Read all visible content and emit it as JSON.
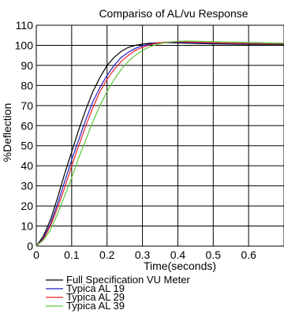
{
  "chart_data": {
    "type": "line",
    "title": "Compariso of AL/vu Response",
    "xlabel": "Time(seconds)",
    "ylabel": "%Deflection",
    "xlim": [
      0,
      0.7
    ],
    "ylim": [
      0,
      110
    ],
    "xticks": [
      "0",
      "0.1",
      "0.2",
      "0.3",
      "0.4",
      "0.5",
      "0.6"
    ],
    "yticks": [
      "0",
      "10",
      "20",
      "30",
      "40",
      "50",
      "60",
      "70",
      "80",
      "90",
      "100",
      "110"
    ],
    "grid": true,
    "legend_position": "bottom",
    "x": [
      0,
      0.02,
      0.04,
      0.06,
      0.08,
      0.1,
      0.12,
      0.14,
      0.16,
      0.18,
      0.2,
      0.22,
      0.24,
      0.26,
      0.28,
      0.3,
      0.32,
      0.34,
      0.36,
      0.38,
      0.4,
      0.42,
      0.44,
      0.46,
      0.48,
      0.5,
      0.55,
      0.6,
      0.65,
      0.7
    ],
    "series": [
      {
        "name": "Full Specification VU Meter",
        "color": "#000000",
        "values": [
          0,
          5,
          13,
          24,
          36,
          47,
          58,
          68,
          77,
          84,
          90,
          94,
          97,
          99,
          100,
          100.6,
          101,
          101.2,
          101.3,
          101.3,
          101.2,
          101.1,
          101,
          100.9,
          100.8,
          100.7,
          100.6,
          100.5,
          100.5,
          100.5
        ]
      },
      {
        "name": "Typica AL 19",
        "color": "#1f1fbf",
        "values": [
          0,
          4,
          11,
          21,
          32,
          43,
          53,
          63,
          72,
          79,
          85,
          90,
          94,
          96.5,
          98.5,
          99.8,
          100.6,
          101.1,
          101.4,
          101.5,
          101.5,
          101.4,
          101.3,
          101.2,
          101.1,
          101,
          100.9,
          100.8,
          100.8,
          100.8
        ]
      },
      {
        "name": "Typica AL 29",
        "color": "#e8202a",
        "values": [
          0,
          3.5,
          10,
          19,
          29,
          40,
          50,
          60,
          69,
          77,
          83,
          88,
          92,
          95,
          97.5,
          99,
          100.2,
          101,
          101.5,
          101.7,
          101.8,
          101.7,
          101.6,
          101.5,
          101.4,
          101.3,
          101.1,
          101,
          100.9,
          100.9
        ]
      },
      {
        "name": "Typica AL 39",
        "color": "#5cc93b",
        "values": [
          0,
          3,
          8,
          16,
          25,
          34,
          44,
          53,
          62,
          70,
          77,
          83,
          88,
          92,
          95,
          97.5,
          99.2,
          100.4,
          101.2,
          101.7,
          102,
          102.1,
          102.1,
          102,
          101.9,
          101.8,
          101.6,
          101.4,
          101.2,
          101.1
        ]
      }
    ]
  }
}
